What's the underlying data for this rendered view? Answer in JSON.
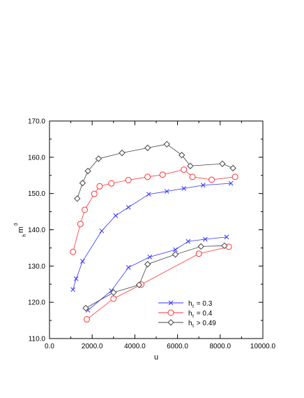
{
  "chart_data": {
    "type": "line",
    "title": "",
    "xlabel": "u",
    "ylabel_main": "m",
    "ylabel_sub": "h",
    "ylabel_sup": "0",
    "xlim": [
      0,
      10000
    ],
    "ylim": [
      110,
      170
    ],
    "x_ticks": [
      0,
      2000,
      4000,
      6000,
      8000,
      10000
    ],
    "x_tick_labels": [
      "0.0",
      "2000.0",
      "4000.0",
      "6000.0",
      "8000.0",
      "10000.0"
    ],
    "y_ticks": [
      110,
      120,
      130,
      140,
      150,
      160,
      170
    ],
    "y_tick_labels": [
      "110.0",
      "120.0",
      "130.0",
      "140.0",
      "150.0",
      "160.0",
      "170.0"
    ],
    "grid": false,
    "legend_position": "bottom-right",
    "series": [
      {
        "legend_main": "h",
        "legend_sub": "t",
        "legend_rest": " = 0.3",
        "marker": "x",
        "color": "#3333ff",
        "segments": [
          [
            [
              1100,
              123.5
            ],
            [
              1250,
              126.5
            ],
            [
              1550,
              131.3
            ],
            [
              2450,
              139.7
            ],
            [
              3100,
              143.9
            ],
            [
              3700,
              146.2
            ],
            [
              4650,
              149.8
            ],
            [
              5500,
              150.6
            ],
            [
              6300,
              151.4
            ],
            [
              7200,
              152.3
            ],
            [
              8500,
              152.8
            ]
          ],
          [
            [
              1800,
              117.8
            ],
            [
              2900,
              123.2
            ],
            [
              3700,
              129.6
            ],
            [
              4700,
              132.5
            ],
            [
              5900,
              134.5
            ],
            [
              6500,
              136.8
            ],
            [
              7300,
              137.4
            ],
            [
              8300,
              138.0
            ]
          ]
        ]
      },
      {
        "legend_main": "h",
        "legend_sub": "t",
        "legend_rest": " = 0.4",
        "marker": "circle",
        "color": "#ff3333",
        "segments": [
          [
            [
              1100,
              133.9
            ],
            [
              1450,
              141.6
            ],
            [
              1650,
              145.5
            ],
            [
              2100,
              149.9
            ],
            [
              2350,
              152.0
            ],
            [
              2900,
              152.8
            ],
            [
              3700,
              153.7
            ],
            [
              4600,
              154.6
            ],
            [
              5300,
              155.2
            ],
            [
              6300,
              156.6
            ],
            [
              6700,
              154.6
            ],
            [
              7600,
              153.8
            ],
            [
              8700,
              154.6
            ]
          ],
          [
            [
              1750,
              115.3
            ],
            [
              3000,
              121.0
            ],
            [
              4300,
              124.9
            ],
            [
              7000,
              133.4
            ],
            [
              8400,
              135.3
            ]
          ]
        ]
      },
      {
        "legend_main": "h",
        "legend_sub": "t",
        "legend_rest": " > 0.49",
        "marker": "diamond",
        "color": "#444444",
        "segments": [
          [
            [
              1300,
              148.6
            ],
            [
              1550,
              152.9
            ],
            [
              1800,
              156.2
            ],
            [
              2300,
              159.6
            ],
            [
              3400,
              161.2
            ],
            [
              4600,
              162.6
            ],
            [
              5500,
              163.6
            ],
            [
              6200,
              160.6
            ],
            [
              6600,
              157.6
            ],
            [
              8100,
              158.2
            ],
            [
              8600,
              157.0
            ]
          ],
          [
            [
              1700,
              118.4
            ],
            [
              3000,
              122.7
            ],
            [
              4200,
              124.8
            ],
            [
              4600,
              130.5
            ],
            [
              5900,
              133.2
            ],
            [
              7100,
              135.4
            ],
            [
              8200,
              135.6
            ]
          ]
        ]
      }
    ]
  }
}
